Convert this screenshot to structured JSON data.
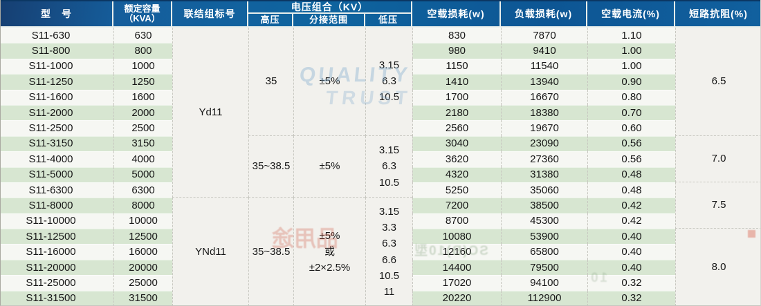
{
  "table": {
    "headers": {
      "model": "型　号",
      "capacity_l1": "额定容量",
      "capacity_l2": "（KVA）",
      "connection": "联结组标号",
      "voltage_group": "电压组合（KV）",
      "hv": "高压",
      "tap": "分接范围",
      "lv": "低压",
      "no_load_loss": "空载损耗(w)",
      "load_loss": "负载损耗(w)",
      "no_load_current": "空载电流(%)",
      "impedance": "短路抗阻(%)"
    },
    "rows": [
      {
        "model": "S11-630",
        "capacity": "630",
        "p0": "830",
        "pk": "7870",
        "i0": "1.10"
      },
      {
        "model": "S11-800",
        "capacity": "800",
        "p0": "980",
        "pk": "9410",
        "i0": "1.00"
      },
      {
        "model": "S11-1000",
        "capacity": "1000",
        "p0": "1150",
        "pk": "11540",
        "i0": "1.00"
      },
      {
        "model": "S11-1250",
        "capacity": "1250",
        "p0": "1410",
        "pk": "13940",
        "i0": "0.90"
      },
      {
        "model": "S11-1600",
        "capacity": "1600",
        "p0": "1700",
        "pk": "16670",
        "i0": "0.80"
      },
      {
        "model": "S11-2000",
        "capacity": "2000",
        "p0": "2180",
        "pk": "18380",
        "i0": "0.70"
      },
      {
        "model": "S11-2500",
        "capacity": "2500",
        "p0": "2560",
        "pk": "19670",
        "i0": "0.60"
      },
      {
        "model": "S11-3150",
        "capacity": "3150",
        "p0": "3040",
        "pk": "23090",
        "i0": "0.56"
      },
      {
        "model": "S11-4000",
        "capacity": "4000",
        "p0": "3620",
        "pk": "27360",
        "i0": "0.56"
      },
      {
        "model": "S11-5000",
        "capacity": "5000",
        "p0": "4320",
        "pk": "31380",
        "i0": "0.48"
      },
      {
        "model": "S11-6300",
        "capacity": "6300",
        "p0": "5250",
        "pk": "35060",
        "i0": "0.48"
      },
      {
        "model": "S11-8000",
        "capacity": "8000",
        "p0": "7200",
        "pk": "38500",
        "i0": "0.42"
      },
      {
        "model": "S11-10000",
        "capacity": "10000",
        "p0": "8700",
        "pk": "45300",
        "i0": "0.42"
      },
      {
        "model": "S11-12500",
        "capacity": "12500",
        "p0": "10080",
        "pk": "53900",
        "i0": "0.40"
      },
      {
        "model": "S11-16000",
        "capacity": "16000",
        "p0": "12160",
        "pk": "65800",
        "i0": "0.40"
      },
      {
        "model": "S11-20000",
        "capacity": "20000",
        "p0": "14400",
        "pk": "79500",
        "i0": "0.40"
      },
      {
        "model": "S11-25000",
        "capacity": "25000",
        "p0": "17020",
        "pk": "94100",
        "i0": "0.32"
      },
      {
        "model": "S11-31500",
        "capacity": "31500",
        "p0": "20220",
        "pk": "112900",
        "i0": "0.32"
      }
    ],
    "merged": {
      "connection": [
        "Yd11",
        "YNd11"
      ],
      "hv": [
        "35",
        "35~38.5",
        "35~38.5"
      ],
      "tap": [
        "±5%",
        "±5%",
        "±5%\n或\n±2×2.5%"
      ],
      "lv": [
        "3.15\n6.3\n10.5",
        "3.15\n6.3\n10.5",
        "3.15\n3.3\n6.3\n6.6\n10.5\n11"
      ],
      "impedance": [
        "6.5",
        "7.0",
        "7.5",
        "8.0"
      ]
    }
  },
  "artifacts": {
    "watermark_line1": "QUALITY",
    "watermark_line2": "TRUST",
    "bleed_red": "品用途",
    "bleed_green1": "SC(B)10型",
    "bleed_green2": "10"
  }
}
